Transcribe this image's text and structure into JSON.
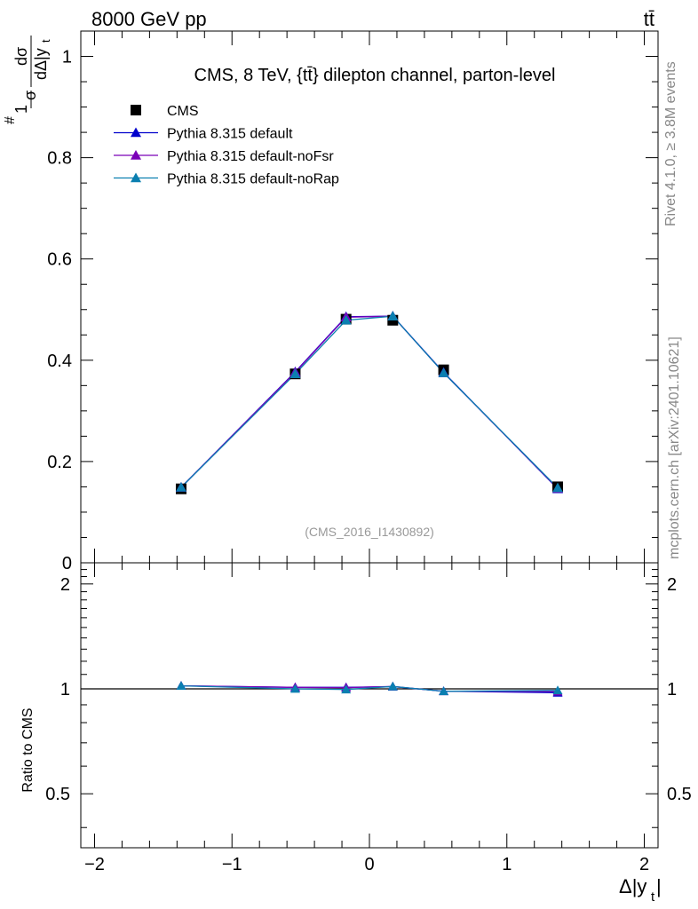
{
  "header": {
    "energy_label": "8000 GeV pp",
    "process_label": "tt̄",
    "side_label_top": "Rivet 4.1.0, ≥ 3.8M events",
    "side_label_bottom": "mcplots.cern.ch [arXiv:2401.10621]"
  },
  "chart_data": {
    "type": "line",
    "title": "CMS, 8 TeV, {tt̄} dilepton channel, parton-level",
    "watermark": "(CMS_2016_I1430892)",
    "xlabel": "Δ|y_t|",
    "ylabel": "1/σ dσ/dΔ|y_t|",
    "ylabel_parts": {
      "prefix_frac_num": "1",
      "prefix_frac_den": "σ",
      "num": "dσ",
      "den": "dΔ|y",
      "den_sub": "t"
    },
    "xlabel_parts": {
      "main": "Δ|y",
      "sub": "t"
    },
    "xlim": [
      -2.1,
      2.1
    ],
    "ylim": [
      0,
      1.05
    ],
    "x_ticks": [
      -2,
      -1,
      0,
      1,
      2
    ],
    "x_tick_labels": [
      "−2",
      "−1",
      "0",
      "1",
      "2"
    ],
    "y_ticks": [
      0,
      0.2,
      0.4,
      0.6,
      0.8,
      1
    ],
    "y_tick_labels": [
      "0",
      "0.2",
      "0.4",
      "0.6",
      "0.8",
      "1"
    ],
    "x": [
      -1.37,
      -0.54,
      -0.17,
      0.17,
      0.54,
      1.37
    ],
    "legend_position": "top-left",
    "series": [
      {
        "name": "CMS",
        "kind": "data",
        "color": "#000000",
        "values": [
          0.146,
          0.373,
          0.481,
          0.479,
          0.381,
          0.15
        ]
      },
      {
        "name": "Pythia 8.315 default",
        "kind": "mc",
        "color": "#0000cc",
        "values": [
          0.149,
          0.377,
          0.486,
          0.487,
          0.376,
          0.146
        ]
      },
      {
        "name": "Pythia 8.315 default-noFsr",
        "kind": "mc",
        "color": "#7a00b8",
        "values": [
          0.149,
          0.376,
          0.485,
          0.487,
          0.375,
          0.147
        ]
      },
      {
        "name": "Pythia 8.315 default-noRap",
        "kind": "mc",
        "color": "#0a7fb0",
        "values": [
          0.149,
          0.373,
          0.479,
          0.487,
          0.375,
          0.148
        ]
      }
    ],
    "ratio": {
      "ylabel": "Ratio to CMS",
      "ylim": [
        0.35,
        2.3
      ],
      "y_ticks": [
        0.5,
        1,
        2
      ],
      "y_tick_labels": [
        "0.5",
        "1",
        "2"
      ],
      "reference": 1.0,
      "series": [
        {
          "name": "Pythia 8.315 default",
          "color": "#0000cc",
          "values": [
            1.02,
            1.01,
            1.01,
            1.015,
            0.985,
            0.975
          ]
        },
        {
          "name": "Pythia 8.315 default-noFsr",
          "color": "#7a00b8",
          "values": [
            1.02,
            1.01,
            1.008,
            1.016,
            0.984,
            0.982
          ]
        },
        {
          "name": "Pythia 8.315 default-noRap",
          "color": "#0a7fb0",
          "values": [
            1.02,
            1.0,
            0.996,
            1.016,
            0.984,
            0.99
          ]
        }
      ]
    }
  }
}
